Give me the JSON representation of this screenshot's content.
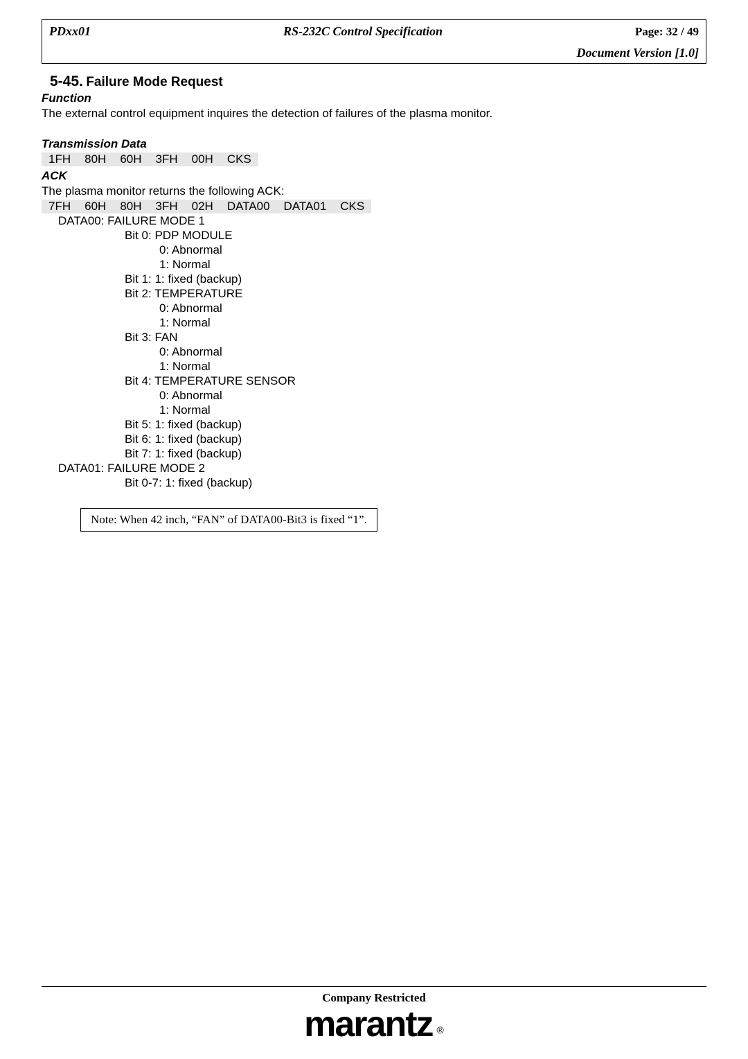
{
  "header": {
    "left": "PDxx01",
    "center": "RS-232C Control Specification",
    "right_label": "Page:",
    "right_value": "32 / 49",
    "version": "Document Version [1.0]"
  },
  "section": {
    "number": "5-45.",
    "title": "Failure Mode Request"
  },
  "function": {
    "label": "Function",
    "text": "The external control equipment inquires the detection of failures of the plasma monitor."
  },
  "transmission": {
    "label": "Transmission Data",
    "bytes": [
      "1FH",
      "80H",
      "60H",
      "3FH",
      "00H",
      "CKS"
    ]
  },
  "ack": {
    "label": "ACK",
    "intro": "The plasma monitor returns the following ACK:",
    "bytes": [
      "7FH",
      "60H",
      "80H",
      "3FH",
      "02H",
      "DATA00",
      "DATA01",
      "CKS"
    ]
  },
  "data00": {
    "title": "DATA00: FAILURE MODE 1",
    "lines": [
      "Bit 0: PDP MODULE",
      "0: Abnormal",
      "1: Normal",
      "Bit 1: 1: fixed (backup)",
      "Bit 2: TEMPERATURE",
      "0: Abnormal",
      "1: Normal",
      "Bit 3: FAN",
      "0: Abnormal",
      "1: Normal",
      "Bit 4: TEMPERATURE SENSOR",
      "0: Abnormal",
      "1: Normal",
      "Bit 5: 1: fixed (backup)",
      "Bit 6: 1: fixed (backup)",
      "Bit 7:   1: fixed (backup)"
    ],
    "indent_levels": [
      2,
      3,
      3,
      2,
      2,
      3,
      3,
      2,
      3,
      3,
      2,
      3,
      3,
      2,
      2,
      2
    ]
  },
  "data01": {
    "title": "DATA01: FAILURE MODE 2",
    "line": "Bit 0-7:   1: fixed (backup)"
  },
  "note": "Note: When 42 inch, “FAN” of DATA00-Bit3 is fixed “1”.",
  "footer": {
    "text": "Company Restricted",
    "logo": "marantz",
    "registered": "®"
  },
  "colors": {
    "byte_bg": "#e6e6e6",
    "text": "#000000",
    "page_bg": "#ffffff"
  }
}
